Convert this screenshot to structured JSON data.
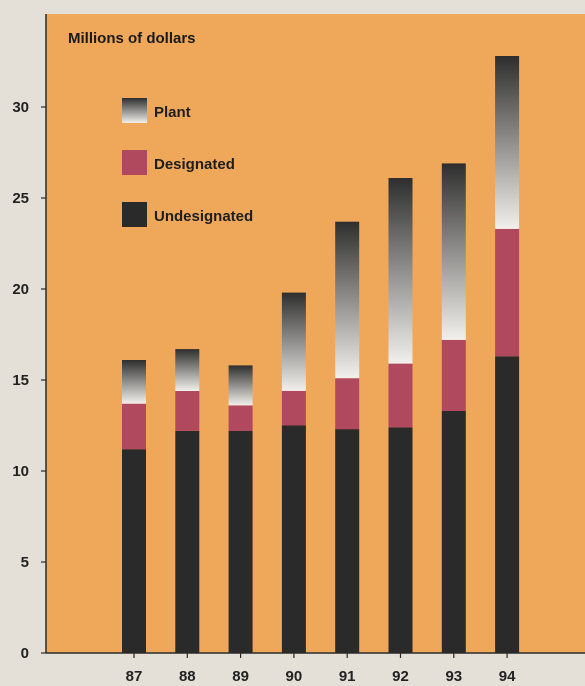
{
  "chart_data": {
    "type": "bar",
    "stacked": true,
    "unit_label": "Millions of dollars",
    "categories": [
      "87",
      "88",
      "89",
      "90",
      "91",
      "92",
      "93",
      "94"
    ],
    "series": [
      {
        "name": "Undesignated",
        "values": [
          11.2,
          12.2,
          12.2,
          12.5,
          12.3,
          12.4,
          13.3,
          16.3
        ]
      },
      {
        "name": "Designated",
        "values": [
          2.5,
          2.2,
          1.4,
          1.9,
          2.8,
          3.5,
          3.9,
          7.0
        ]
      },
      {
        "name": "Plant",
        "values": [
          2.4,
          2.3,
          2.2,
          5.4,
          8.6,
          10.2,
          9.7,
          9.5
        ]
      }
    ],
    "legend_order": [
      "Plant",
      "Designated",
      "Undesignated"
    ],
    "yticks": [
      0,
      5,
      10,
      15,
      20,
      25,
      30
    ],
    "ylim": [
      0,
      35
    ],
    "grid": false,
    "legend_position": "top-left",
    "colors": {
      "background": "#efa85a",
      "Undesignated": "#2a2a2a",
      "Designated": "#b0485e",
      "Plant_top": "#2e2e2e",
      "Plant_bottom": "#f2f0ec",
      "axis": "#2a2a2a"
    }
  }
}
